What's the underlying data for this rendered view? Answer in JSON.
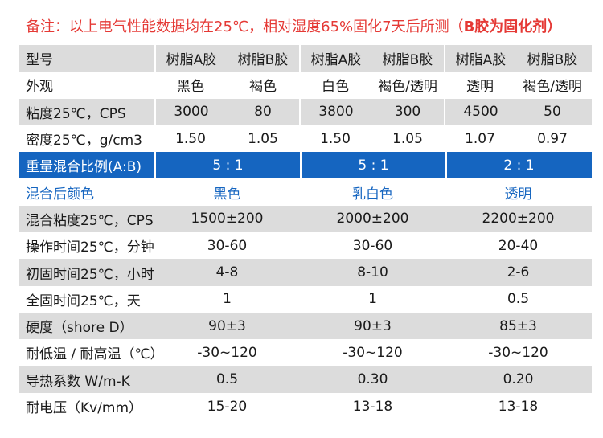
{
  "note": {
    "text": "备注：以上电气性能数据均在25℃，相对湿度65%固化7天后所测（",
    "emphasis": "B胶为固化剂",
    "close": "）"
  },
  "header": {
    "label": "型号",
    "cols": [
      "树脂A胶",
      "树脂B胶",
      "树脂A胶",
      "树脂B胶",
      "树脂A胶",
      "树脂B胶"
    ]
  },
  "component_rows": [
    {
      "label": "外观",
      "values": [
        "黑色",
        "褐色",
        "白色",
        "褐色/透明",
        "透明",
        "褐色/透明"
      ]
    },
    {
      "label": "粘度25℃，CPS",
      "values": [
        "3000",
        "80",
        "3800",
        "300",
        "4500",
        "50"
      ]
    },
    {
      "label": "密度25℃，g/cm3",
      "values": [
        "1.50",
        "1.05",
        "1.50",
        "1.05",
        "1.07",
        "0.97"
      ]
    }
  ],
  "ratio_row": {
    "label": "重量混合比例(A:B)",
    "values": [
      "5 : 1",
      "5 : 1",
      "2 : 1"
    ]
  },
  "color_row": {
    "label": "混合后颜色",
    "values": [
      "黑色",
      "乳白色",
      "透明"
    ]
  },
  "mixed_rows": [
    {
      "label": "混合粘度25℃，CPS",
      "values": [
        "1500±200",
        "2000±200",
        "2200±200"
      ]
    },
    {
      "label": "操作时间25℃，分钟",
      "values": [
        "30-60",
        "30-60",
        "20-40"
      ]
    },
    {
      "label": "初固时间25℃，小时",
      "values": [
        "4-8",
        "8-10",
        "2-6"
      ]
    },
    {
      "label": "全固时间25℃，天",
      "values": [
        "1",
        "1",
        "0.5"
      ]
    },
    {
      "label": "硬度（shore D）",
      "values": [
        "90±3",
        "90±3",
        "85±3"
      ]
    },
    {
      "label": "耐低温 / 耐高温（℃）",
      "values": [
        "-30~120",
        "-30~120",
        "-30~120"
      ]
    },
    {
      "label": "导热系数 W/m-K",
      "values": [
        "0.5",
        "0.30",
        "0.20"
      ]
    },
    {
      "label": "耐电压（Kv/mm）",
      "values": [
        "15-20",
        "13-18",
        "13-18"
      ]
    }
  ]
}
